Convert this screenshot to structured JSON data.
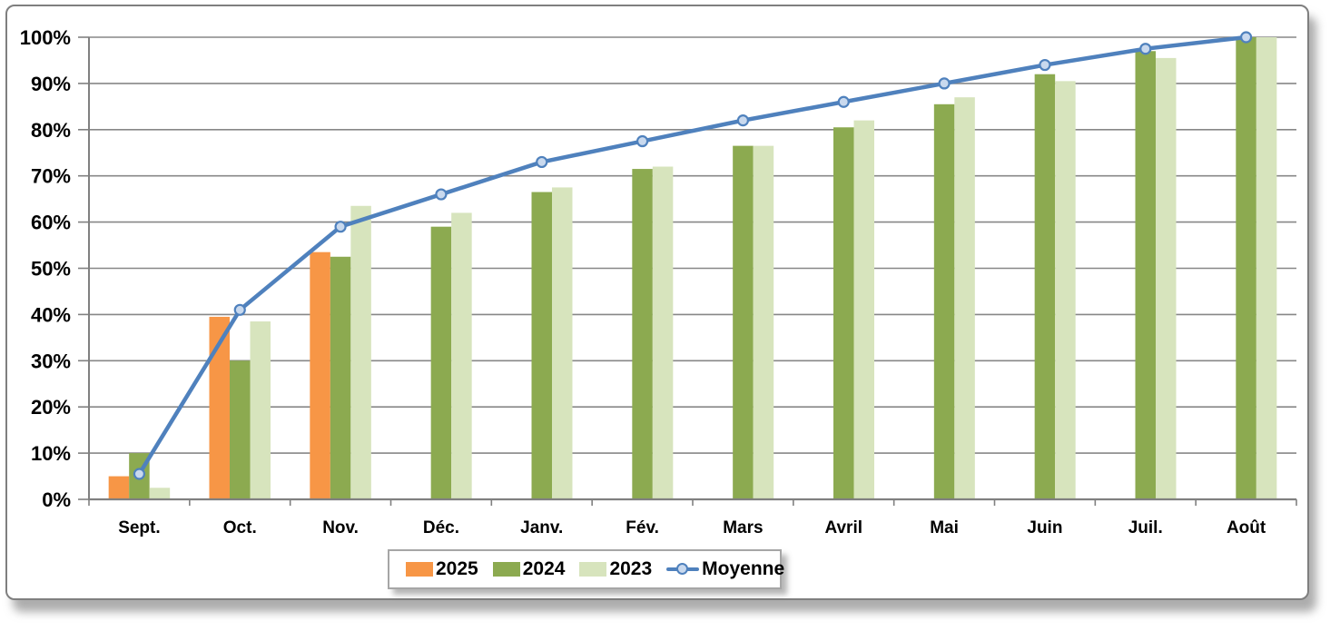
{
  "chart_data": {
    "type": "bar",
    "subtype": "grouped bars with overlay line",
    "title": "",
    "xlabel": "",
    "ylabel": "",
    "ylim": [
      0,
      100
    ],
    "grid": true,
    "legend_position": "bottom",
    "categories": [
      "Sept.",
      "Oct.",
      "Nov.",
      "Déc.",
      "Janv.",
      "Fév.",
      "Mars",
      "Avril",
      "Mai",
      "Juin",
      "Juil.",
      "Août"
    ],
    "y_ticks": [
      "0%",
      "10%",
      "20%",
      "30%",
      "40%",
      "50%",
      "60%",
      "70%",
      "80%",
      "90%",
      "100%"
    ],
    "y_tick_values": [
      0,
      10,
      20,
      30,
      40,
      50,
      60,
      70,
      80,
      90,
      100
    ],
    "series": [
      {
        "name": "2025",
        "type": "bar",
        "color": "#F79646",
        "values": [
          5,
          39.5,
          53.5,
          null,
          null,
          null,
          null,
          null,
          null,
          null,
          null,
          null
        ]
      },
      {
        "name": "2024",
        "type": "bar",
        "color": "#8CAA50",
        "values": [
          10,
          30,
          52.5,
          59,
          66.5,
          71.5,
          76.5,
          80.5,
          85.5,
          92,
          97,
          100
        ]
      },
      {
        "name": "2023",
        "type": "bar",
        "color": "#D7E4BD",
        "values": [
          2.5,
          38.5,
          63.5,
          62,
          67.5,
          72,
          76.5,
          82,
          87,
          90.5,
          95.5,
          100
        ]
      },
      {
        "name": "Moyenne",
        "type": "line",
        "color": "#4F81BD",
        "marker_fill": "#C9D9EE",
        "values": [
          5.5,
          41,
          59,
          66,
          73,
          77.5,
          82,
          86,
          90,
          94,
          97.5,
          100
        ]
      }
    ]
  },
  "colors": {
    "gridline": "#878787",
    "axis": "#808080",
    "card_border": "#7f7f7f",
    "legend_border": "#a6a6a6",
    "text": "#000000",
    "background": "#ffffff"
  }
}
